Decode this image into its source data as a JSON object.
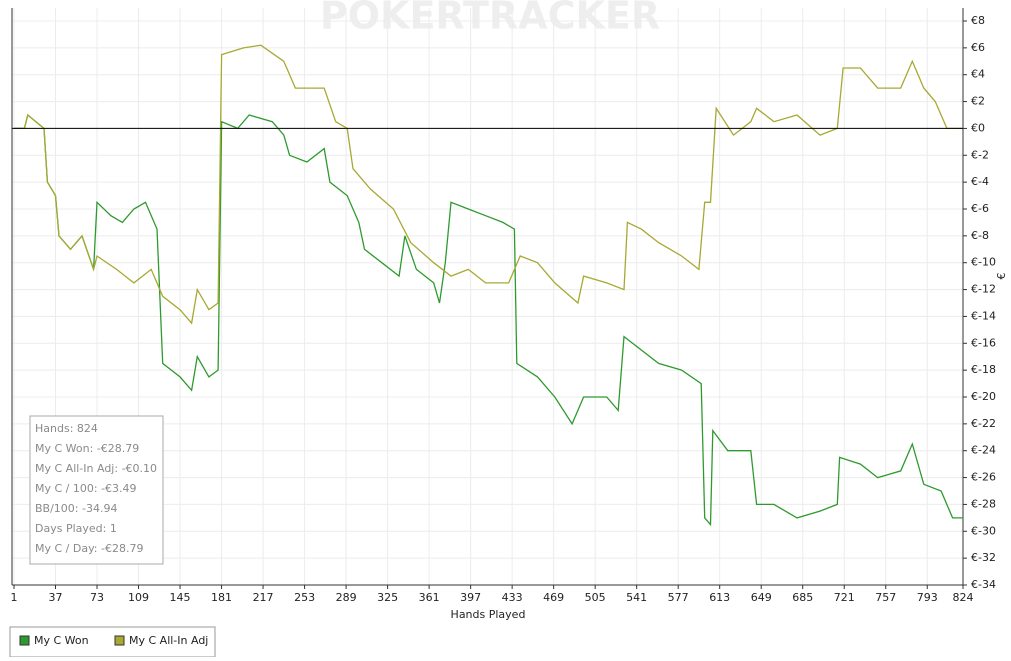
{
  "chart_data": {
    "type": "line",
    "watermark": "POKERTRACKER",
    "xlabel": "Hands Played",
    "ylabel": "€",
    "xlim": [
      1,
      824
    ],
    "xticks": [
      1,
      37,
      73,
      109,
      145,
      181,
      217,
      253,
      289,
      325,
      361,
      397,
      433,
      469,
      505,
      541,
      577,
      613,
      649,
      685,
      721,
      757,
      793,
      824
    ],
    "ylim": [
      -34,
      8
    ],
    "yticks": [
      {
        "value": 8,
        "label": "€8"
      },
      {
        "value": 6,
        "label": "€6"
      },
      {
        "value": 4,
        "label": "€4"
      },
      {
        "value": 2,
        "label": "€2"
      },
      {
        "value": 0,
        "label": "€0"
      },
      {
        "value": -2,
        "label": "€-2"
      },
      {
        "value": -4,
        "label": "€-4"
      },
      {
        "value": -6,
        "label": "€-6"
      },
      {
        "value": -8,
        "label": "€-8"
      },
      {
        "value": -10,
        "label": "€-10"
      },
      {
        "value": -12,
        "label": "€-12"
      },
      {
        "value": -14,
        "label": "€-14"
      },
      {
        "value": -16,
        "label": "€-16"
      },
      {
        "value": -18,
        "label": "€-18"
      },
      {
        "value": -20,
        "label": "€-20"
      },
      {
        "value": -22,
        "label": "€-22"
      },
      {
        "value": -24,
        "label": "€-24"
      },
      {
        "value": -26,
        "label": "€-26"
      },
      {
        "value": -28,
        "label": "€-28"
      },
      {
        "value": -30,
        "label": "€-30"
      },
      {
        "value": -32,
        "label": "€-32"
      },
      {
        "value": -34,
        "label": "€-34"
      }
    ],
    "grid": true,
    "zero_line": 0,
    "series": [
      {
        "name": "My C Won",
        "color": "#2e9a2e",
        "x": [
          1,
          10,
          13,
          20,
          27,
          30,
          37,
          40,
          50,
          60,
          70,
          73,
          85,
          95,
          105,
          115,
          125,
          130,
          145,
          155,
          160,
          170,
          178,
          181,
          195,
          205,
          225,
          235,
          240,
          255,
          270,
          275,
          290,
          300,
          305,
          320,
          335,
          340,
          350,
          365,
          370,
          375,
          380,
          395,
          410,
          425,
          435,
          437,
          455,
          470,
          485,
          495,
          515,
          525,
          530,
          545,
          560,
          580,
          597,
          600,
          605,
          607,
          620,
          640,
          645,
          660,
          680,
          700,
          715,
          717,
          735,
          750,
          770,
          780,
          790,
          805,
          815,
          824
        ],
        "values": [
          0,
          0,
          1,
          0.5,
          0,
          -4,
          -5,
          -8,
          -9,
          -8,
          -10.5,
          -5.5,
          -6.5,
          -7,
          -6,
          -5.5,
          -7.5,
          -17.5,
          -18.5,
          -19.5,
          -17,
          -18.5,
          -18,
          0.5,
          0,
          1,
          0.5,
          -0.5,
          -2,
          -2.5,
          -1.5,
          -4,
          -5,
          -7,
          -9,
          -10,
          -11,
          -8,
          -10.5,
          -11.5,
          -13,
          -10,
          -5.5,
          -6,
          -6.5,
          -7,
          -7.5,
          -17.5,
          -18.5,
          -20,
          -22,
          -20,
          -20,
          -21,
          -15.5,
          -16.5,
          -17.5,
          -18,
          -19,
          -29,
          -29.5,
          -22.5,
          -24,
          -24,
          -28,
          -28,
          -29,
          -28.5,
          -28,
          -24.5,
          -25,
          -26,
          -25.5,
          -23.5,
          -26.5,
          -27,
          -29,
          -29
        ]
      },
      {
        "name": "My C All-In Adj",
        "color": "#a8a832",
        "x": [
          1,
          10,
          13,
          20,
          27,
          30,
          37,
          40,
          50,
          60,
          70,
          73,
          90,
          105,
          120,
          130,
          145,
          155,
          160,
          170,
          178,
          181,
          200,
          215,
          235,
          245,
          270,
          280,
          290,
          295,
          310,
          330,
          345,
          365,
          380,
          395,
          410,
          430,
          440,
          455,
          470,
          490,
          495,
          515,
          530,
          533,
          545,
          560,
          580,
          595,
          600,
          605,
          610,
          625,
          640,
          645,
          660,
          680,
          700,
          715,
          720,
          735,
          750,
          770,
          780,
          790,
          800,
          810,
          824
        ],
        "values": [
          0,
          0,
          1,
          0.5,
          0,
          -4,
          -5,
          -8,
          -9,
          -8,
          -10.5,
          -9.5,
          -10.5,
          -11.5,
          -10.5,
          -12.5,
          -13.5,
          -14.5,
          -12,
          -13.5,
          -13,
          5.5,
          6,
          6.2,
          5,
          3,
          3,
          0.5,
          0,
          -3,
          -4.5,
          -6,
          -8.5,
          -10,
          -11,
          -10.5,
          -11.5,
          -11.5,
          -9.5,
          -10,
          -11.5,
          -13,
          -11,
          -11.5,
          -12,
          -7,
          -7.5,
          -8.5,
          -9.5,
          -10.5,
          -5.5,
          -5.5,
          1.5,
          -0.5,
          0.5,
          1.5,
          0.5,
          1,
          -0.5,
          0,
          4.5,
          4.5,
          3,
          3,
          5,
          3,
          2,
          0,
          0
        ]
      }
    ]
  },
  "stats": [
    "Hands: 824",
    "My C Won: -€28.79",
    "My C All-In Adj: -€0.10",
    "My C / 100: -€3.49",
    "BB/100: -34.94",
    "Days Played: 1",
    "My C / Day: -€28.79"
  ]
}
